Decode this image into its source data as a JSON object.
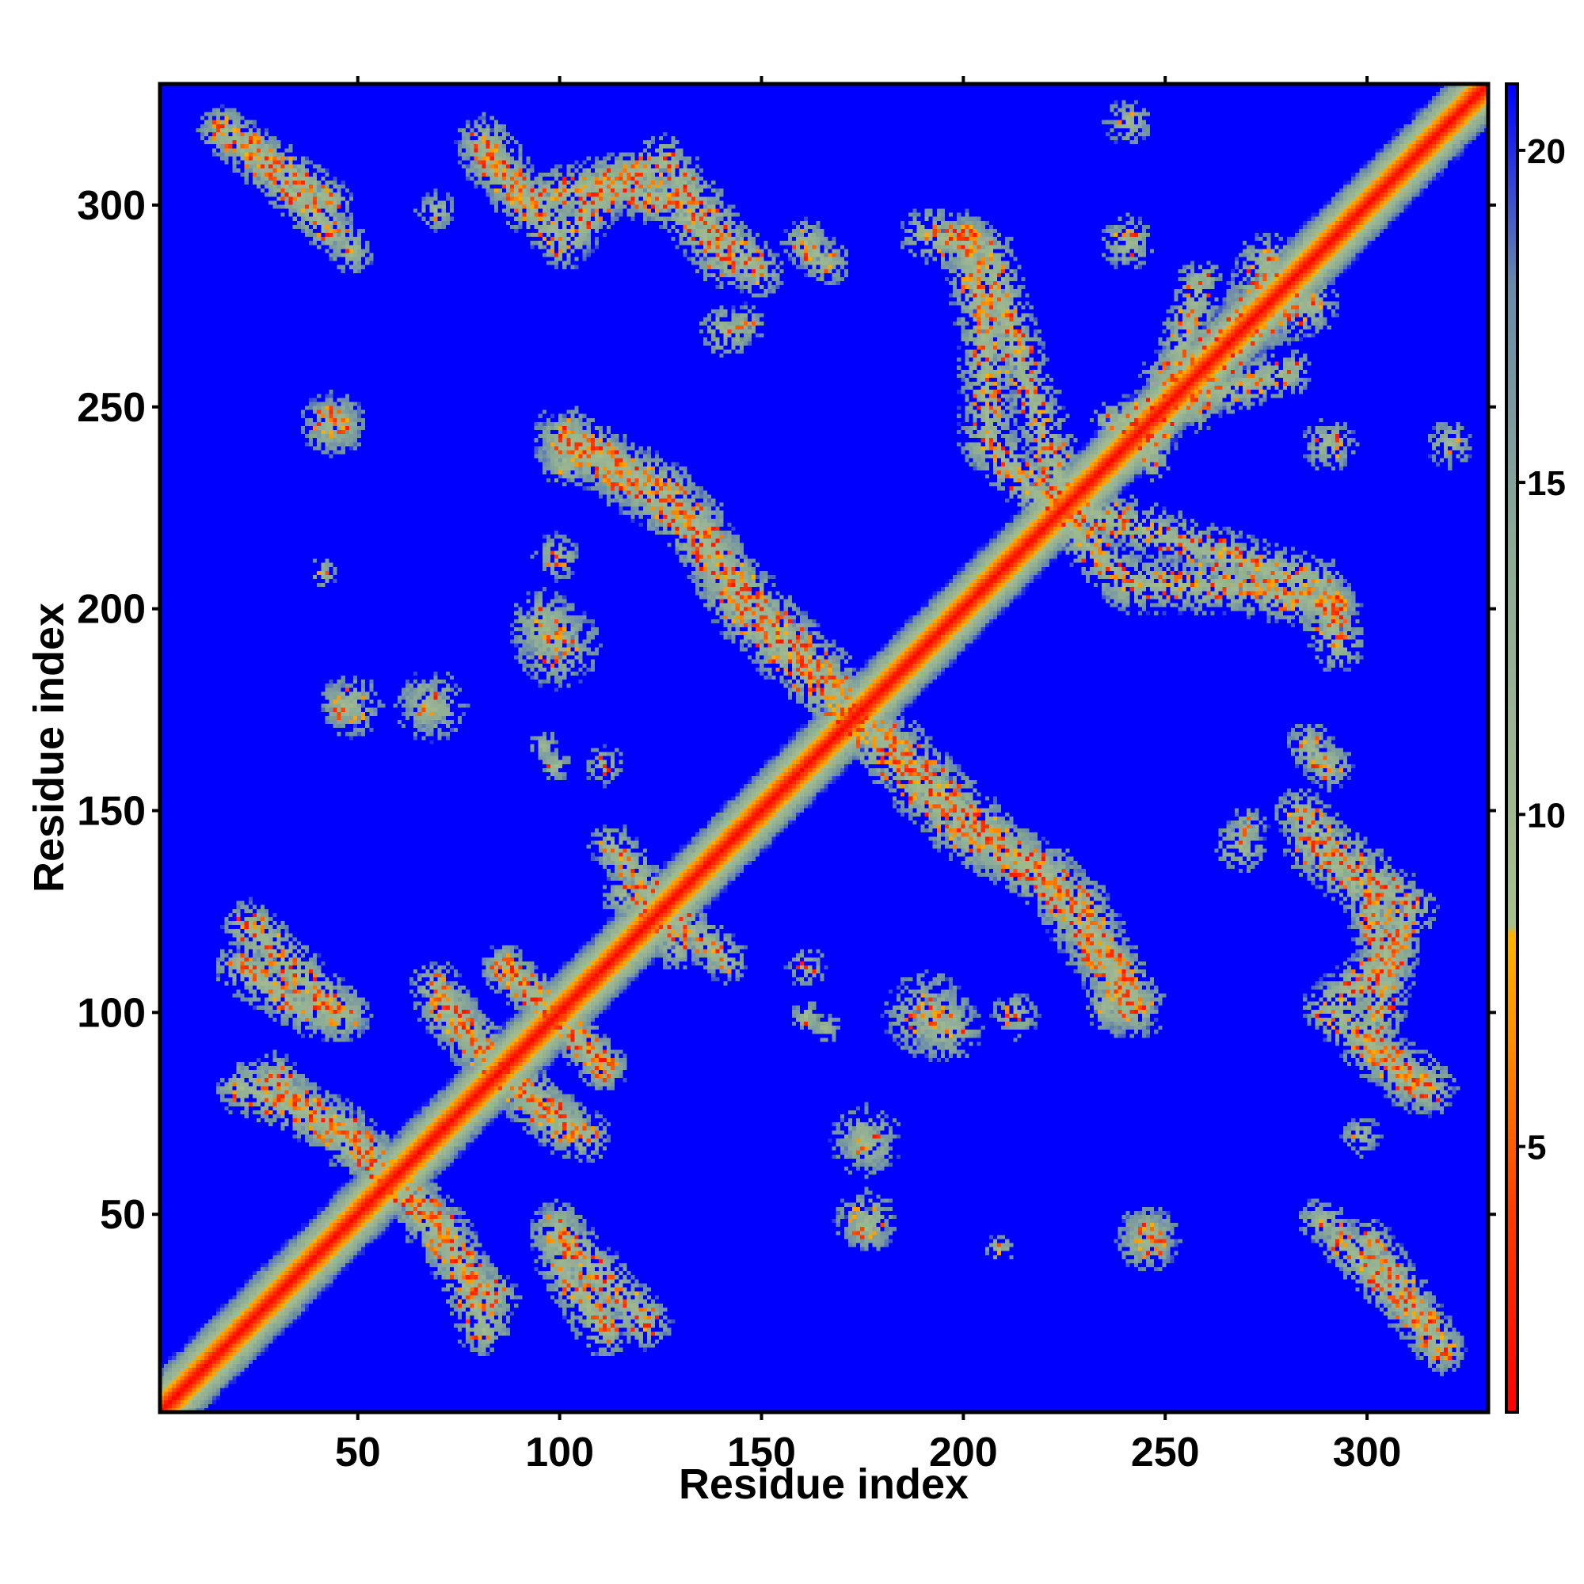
{
  "chart_data": {
    "type": "heatmap",
    "title": "",
    "xlabel": "Residue index",
    "ylabel": "Residue index",
    "xlim": [
      1,
      330
    ],
    "ylim": [
      1,
      330
    ],
    "x_ticks": [
      50,
      100,
      150,
      200,
      250,
      300
    ],
    "y_ticks": [
      50,
      100,
      150,
      200,
      250,
      300
    ],
    "x_tick_labels": [
      "50",
      "100",
      "150",
      "200",
      "250",
      "300"
    ],
    "y_tick_labels": [
      "50",
      "100",
      "150",
      "200",
      "250",
      "300"
    ],
    "value_meaning": "distance between residues (colorbar units)",
    "colorbar": {
      "range": [
        1,
        21
      ],
      "ticks": [
        5,
        10,
        15,
        20
      ],
      "tick_labels": [
        "5",
        "10",
        "15",
        "20"
      ],
      "stops": [
        {
          "value": 1,
          "color": "#ff0000"
        },
        {
          "value": 4,
          "color": "#ff3c00"
        },
        {
          "value": 6.5,
          "color": "#ff8c00"
        },
        {
          "value": 8.2,
          "color": "#ffb400"
        },
        {
          "value": 8.3,
          "color": "#a8c08c"
        },
        {
          "value": 14,
          "color": "#8cab96"
        },
        {
          "value": 18,
          "color": "#6a8aaa"
        },
        {
          "value": 21,
          "color": "#0000ff"
        }
      ]
    },
    "background_value": 21,
    "diagonal": {
      "band_width": 5
    },
    "contact_bands": [
      {
        "points": [
          [
            15,
            318
          ],
          [
            30,
            305
          ],
          [
            43,
            292
          ]
        ],
        "width": 6,
        "intensity": 0.7
      },
      {
        "points": [
          [
            80,
            312
          ],
          [
            100,
            290
          ],
          [
            112,
            305
          ],
          [
            125,
            310
          ],
          [
            140,
            290
          ],
          [
            148,
            283
          ]
        ],
        "width": 7,
        "intensity": 0.65
      },
      {
        "points": [
          [
            160,
            290
          ],
          [
            165,
            285
          ]
        ],
        "width": 6,
        "intensity": 0.5
      },
      {
        "points": [
          [
            190,
            292
          ],
          [
            205,
            288
          ],
          [
            210,
            270
          ],
          [
            215,
            255
          ],
          [
            225,
            225
          ]
        ],
        "width": 7,
        "intensity": 0.65
      },
      {
        "points": [
          [
            100,
            242
          ],
          [
            125,
            228
          ],
          [
            140,
            208
          ],
          [
            165,
            182
          ],
          [
            172,
            172
          ]
        ],
        "width": 8,
        "intensity": 0.75
      },
      {
        "points": [
          [
            172,
            172
          ],
          [
            185,
            158
          ],
          [
            200,
            143
          ],
          [
            220,
            133
          ],
          [
            235,
            110
          ],
          [
            240,
            100
          ]
        ],
        "width": 8,
        "intensity": 0.75
      },
      {
        "points": [
          [
            225,
            220
          ],
          [
            240,
            205
          ],
          [
            265,
            205
          ],
          [
            290,
            200
          ]
        ],
        "width": 7,
        "intensity": 0.6
      },
      {
        "points": [
          [
            250,
            255
          ],
          [
            270,
            270
          ],
          [
            285,
            275
          ]
        ],
        "width": 8,
        "intensity": 0.6
      },
      {
        "points": [
          [
            258,
            280
          ],
          [
            250,
            252
          ],
          [
            245,
            236
          ]
        ],
        "width": 6,
        "intensity": 0.5
      },
      {
        "points": [
          [
            285,
            140
          ],
          [
            300,
            128
          ],
          [
            305,
            110
          ],
          [
            300,
            90
          ],
          [
            315,
            80
          ]
        ],
        "width": 7,
        "intensity": 0.6
      },
      {
        "points": [
          [
            300,
            42
          ],
          [
            312,
            25
          ],
          [
            318,
            15
          ]
        ],
        "width": 6,
        "intensity": 0.75
      },
      {
        "points": [
          [
            20,
            110
          ],
          [
            35,
            100
          ],
          [
            45,
            98
          ]
        ],
        "width": 7,
        "intensity": 0.6
      },
      {
        "points": [
          [
            20,
            80
          ],
          [
            35,
            75
          ],
          [
            45,
            70
          ],
          [
            60,
            55
          ],
          [
            75,
            35
          ],
          [
            82,
            28
          ]
        ],
        "width": 7,
        "intensity": 0.65
      },
      {
        "points": [
          [
            70,
            100
          ],
          [
            80,
            88
          ],
          [
            95,
            75
          ],
          [
            105,
            68
          ]
        ],
        "width": 7,
        "intensity": 0.6
      },
      {
        "points": [
          [
            85,
            110
          ],
          [
            98,
            98
          ],
          [
            110,
            85
          ]
        ],
        "width": 6,
        "intensity": 0.6
      },
      {
        "points": [
          [
            98,
            45
          ],
          [
            110,
            32
          ],
          [
            120,
            22
          ]
        ],
        "width": 7,
        "intensity": 0.6
      },
      {
        "points": [
          [
            115,
            128
          ],
          [
            130,
            120
          ],
          [
            140,
            112
          ]
        ],
        "width": 6,
        "intensity": 0.5
      }
    ],
    "contact_blobs": [
      {
        "x": 42,
        "y": 245,
        "r": 8,
        "intensity": 0.55
      },
      {
        "x": 95,
        "y": 195,
        "r": 9,
        "intensity": 0.55
      },
      {
        "x": 66,
        "y": 175,
        "r": 6,
        "intensity": 0.35
      },
      {
        "x": 45,
        "y": 175,
        "r": 6,
        "intensity": 0.3
      },
      {
        "x": 95,
        "y": 165,
        "r": 4,
        "intensity": 0.35
      },
      {
        "x": 40,
        "y": 208,
        "r": 4,
        "intensity": 0.3
      },
      {
        "x": 140,
        "y": 268,
        "r": 7,
        "intensity": 0.45
      },
      {
        "x": 160,
        "y": 98,
        "r": 4,
        "intensity": 0.4
      },
      {
        "x": 190,
        "y": 98,
        "r": 11,
        "intensity": 0.55
      },
      {
        "x": 175,
        "y": 67,
        "r": 9,
        "intensity": 0.3
      },
      {
        "x": 175,
        "y": 47,
        "r": 8,
        "intensity": 0.25
      },
      {
        "x": 245,
        "y": 43,
        "r": 8,
        "intensity": 0.55
      },
      {
        "x": 270,
        "y": 145,
        "r": 5,
        "intensity": 0.45
      },
      {
        "x": 290,
        "y": 160,
        "r": 6,
        "intensity": 0.45
      },
      {
        "x": 235,
        "y": 100,
        "r": 6,
        "intensity": 0.35
      },
      {
        "x": 298,
        "y": 68,
        "r": 5,
        "intensity": 0.25
      },
      {
        "x": 288,
        "y": 47,
        "r": 6,
        "intensity": 0.3
      },
      {
        "x": 212,
        "y": 98,
        "r": 6,
        "intensity": 0.4
      },
      {
        "x": 240,
        "y": 290,
        "r": 7,
        "intensity": 0.45
      },
      {
        "x": 320,
        "y": 240,
        "r": 6,
        "intensity": 0.45
      },
      {
        "x": 110,
        "y": 160,
        "r": 5,
        "intensity": 0.3
      },
      {
        "x": 200,
        "y": 290,
        "r": 8,
        "intensity": 0.55
      }
    ]
  }
}
